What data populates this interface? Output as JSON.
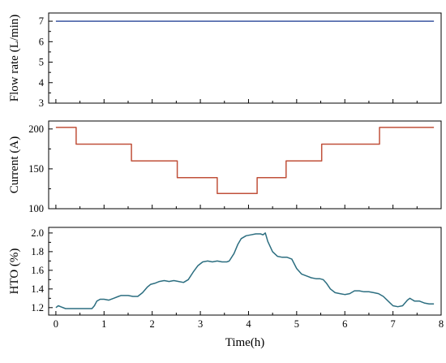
{
  "chart_data": [
    {
      "type": "line",
      "ylabel": "Flow rate (L/min)",
      "ylim": [
        3,
        7.4
      ],
      "yticks": [
        3,
        4,
        5,
        6,
        7
      ],
      "xlim": [
        -0.15,
        8.0
      ],
      "xticks": [
        0,
        1,
        2,
        3,
        4,
        5,
        6,
        7,
        8
      ],
      "show_x_tick_labels": false,
      "grid": false,
      "color": "#3a55a0",
      "series": [
        {
          "x": [
            0.0,
            7.85
          ],
          "y": [
            7.0,
            7.0
          ]
        }
      ]
    },
    {
      "type": "line",
      "ylabel": "Current (A)",
      "ylim": [
        100,
        210
      ],
      "yticks": [
        100,
        150,
        200
      ],
      "xlim": [
        -0.15,
        8.0
      ],
      "xticks": [
        0,
        1,
        2,
        3,
        4,
        5,
        6,
        7,
        8
      ],
      "show_x_tick_labels": false,
      "grid": false,
      "color": "#c0503a",
      "series": [
        {
          "x": [
            0.0,
            0.42,
            0.42,
            1.57,
            1.57,
            2.52,
            2.52,
            3.35,
            3.35,
            4.18,
            4.18,
            4.78,
            4.78,
            5.52,
            5.52,
            6.72,
            6.72,
            7.85
          ],
          "y": [
            202,
            202,
            181,
            181,
            160,
            160,
            139,
            139,
            119,
            119,
            139,
            139,
            160,
            160,
            181,
            181,
            202,
            202
          ]
        }
      ]
    },
    {
      "type": "line",
      "ylabel": "HTO (%)",
      "xlabel": "Time(h)",
      "ylim": [
        1.12,
        2.06
      ],
      "yticks": [
        1.2,
        1.4,
        1.6,
        1.8,
        2.0
      ],
      "ytick_labels": [
        "1.2",
        "1.4",
        "1.6",
        "1.8",
        "2.0"
      ],
      "xlim": [
        -0.15,
        8.0
      ],
      "xticks": [
        0,
        1,
        2,
        3,
        4,
        5,
        6,
        7,
        8
      ],
      "show_x_tick_labels": true,
      "grid": false,
      "color": "#2c6e80",
      "series": [
        {
          "x": [
            0.0,
            0.05,
            0.1,
            0.2,
            0.35,
            0.5,
            0.65,
            0.75,
            0.8,
            0.85,
            0.92,
            1.0,
            1.1,
            1.2,
            1.3,
            1.35,
            1.5,
            1.6,
            1.7,
            1.8,
            1.9,
            1.97,
            2.05,
            2.15,
            2.25,
            2.35,
            2.45,
            2.55,
            2.65,
            2.75,
            2.85,
            2.95,
            3.05,
            3.15,
            3.25,
            3.35,
            3.45,
            3.55,
            3.6,
            3.7,
            3.78,
            3.85,
            3.95,
            4.05,
            4.15,
            4.25,
            4.3,
            4.35,
            4.4,
            4.5,
            4.6,
            4.7,
            4.8,
            4.9,
            5.0,
            5.1,
            5.2,
            5.3,
            5.4,
            5.48,
            5.55,
            5.62,
            5.7,
            5.8,
            5.9,
            6.0,
            6.1,
            6.2,
            6.3,
            6.4,
            6.5,
            6.6,
            6.7,
            6.8,
            6.9,
            7.0,
            7.1,
            7.2,
            7.3,
            7.35,
            7.45,
            7.55,
            7.65,
            7.75,
            7.85
          ],
          "y": [
            1.2,
            1.22,
            1.21,
            1.19,
            1.19,
            1.19,
            1.19,
            1.19,
            1.22,
            1.27,
            1.29,
            1.29,
            1.28,
            1.3,
            1.32,
            1.33,
            1.33,
            1.32,
            1.32,
            1.36,
            1.42,
            1.45,
            1.46,
            1.48,
            1.49,
            1.48,
            1.49,
            1.48,
            1.47,
            1.5,
            1.58,
            1.65,
            1.69,
            1.7,
            1.69,
            1.7,
            1.69,
            1.69,
            1.7,
            1.78,
            1.88,
            1.94,
            1.97,
            1.98,
            1.99,
            1.99,
            1.98,
            2.0,
            1.91,
            1.8,
            1.75,
            1.74,
            1.74,
            1.72,
            1.62,
            1.56,
            1.54,
            1.52,
            1.51,
            1.51,
            1.5,
            1.46,
            1.4,
            1.36,
            1.35,
            1.34,
            1.35,
            1.38,
            1.38,
            1.37,
            1.37,
            1.36,
            1.35,
            1.32,
            1.27,
            1.22,
            1.21,
            1.22,
            1.28,
            1.3,
            1.27,
            1.27,
            1.25,
            1.24,
            1.24
          ]
        }
      ]
    }
  ]
}
